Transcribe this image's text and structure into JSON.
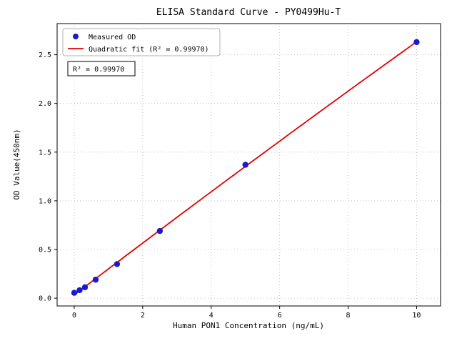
{
  "chart_data": {
    "type": "scatter",
    "title": "ELISA Standard Curve - PY0499Hu-T",
    "xlabel": "Human PON1 Concentration (ng/mL)",
    "ylabel": "OD Value(450nm)",
    "xlim": [
      -0.5,
      10.7
    ],
    "ylim": [
      -0.08,
      2.82
    ],
    "xticks": [
      0,
      2,
      4,
      6,
      8,
      10
    ],
    "yticks": [
      0.0,
      0.5,
      1.0,
      1.5,
      2.0,
      2.5
    ],
    "grid": true,
    "legend_position": "upper left",
    "annotation": "R² = 0.99970",
    "series": [
      {
        "name": "Measured OD",
        "kind": "scatter",
        "color": "#1a1acd",
        "x": [
          0,
          0.156,
          0.3125,
          0.625,
          1.25,
          2.5,
          5,
          10
        ],
        "y": [
          0.055,
          0.082,
          0.112,
          0.19,
          0.35,
          0.69,
          1.37,
          2.63
        ]
      },
      {
        "name": "Quadratic fit (R² = 0.99970)",
        "kind": "quadratic-fit-line",
        "color": "#e30000"
      }
    ],
    "colors": {
      "grid": "#b5b5b5",
      "frame": "#000000",
      "background": "#ffffff"
    }
  }
}
